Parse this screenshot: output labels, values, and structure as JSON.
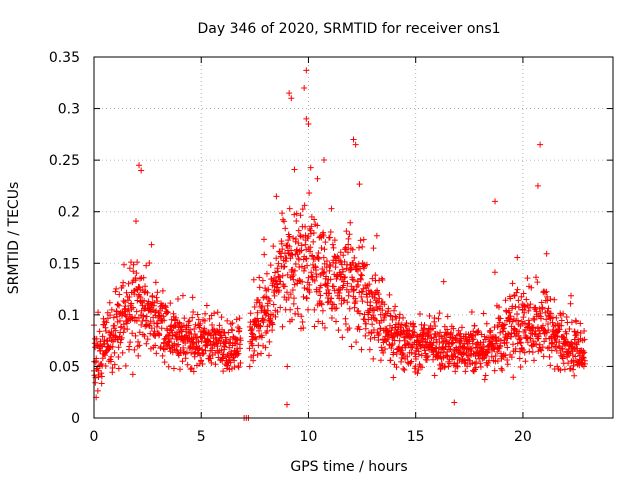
{
  "chart_data": {
    "type": "scatter",
    "title": "Day 346 of 2020, SRMTID for receiver ons1",
    "xlabel": "GPS time / hours",
    "ylabel": "SRMTID / TECUs",
    "xlim": [
      0,
      24.2
    ],
    "ylim": [
      0,
      0.35
    ],
    "xticks": [
      0,
      5,
      10,
      15,
      20
    ],
    "yticks": [
      0,
      0.05,
      0.1,
      0.15,
      0.2,
      0.25,
      0.3,
      0.35
    ],
    "ytick_labels": [
      "0",
      "0.05",
      "0.1",
      "0.15",
      "0.2",
      "0.25",
      "0.3",
      "0.35"
    ],
    "grid": true,
    "marker": "+",
    "color": "#ff0000",
    "series": [
      {
        "name": "ons1",
        "profile": {
          "description": "approximate envelope of the scattered SRMTID points, sampled per hour",
          "hour": [
            0,
            1,
            2,
            3,
            4,
            5,
            6,
            7,
            8,
            9,
            10,
            11,
            12,
            13,
            14,
            15,
            16,
            17,
            18,
            19,
            20,
            21,
            22,
            23
          ],
          "median": [
            0.05,
            0.09,
            0.11,
            0.09,
            0.075,
            0.075,
            0.07,
            0.07,
            0.1,
            0.15,
            0.15,
            0.13,
            0.13,
            0.11,
            0.075,
            0.07,
            0.07,
            0.065,
            0.065,
            0.075,
            0.09,
            0.09,
            0.07,
            0.065
          ],
          "spread": [
            0.02,
            0.03,
            0.035,
            0.025,
            0.02,
            0.02,
            0.02,
            0.02,
            0.03,
            0.05,
            0.05,
            0.04,
            0.04,
            0.035,
            0.02,
            0.02,
            0.02,
            0.02,
            0.02,
            0.025,
            0.03,
            0.035,
            0.02,
            0.02
          ],
          "samples_per_hour": 95
        },
        "gaps_hours": [
          [
            6.85,
            7.25
          ]
        ],
        "notable_points": [
          {
            "x": 7.0,
            "y": 0.0
          },
          {
            "x": 7.1,
            "y": 0.0
          },
          {
            "x": 7.2,
            "y": 0.0
          },
          {
            "x": 9.0,
            "y": 0.013
          },
          {
            "x": 9.2,
            "y": 0.31
          },
          {
            "x": 9.1,
            "y": 0.315
          },
          {
            "x": 9.8,
            "y": 0.32
          },
          {
            "x": 9.9,
            "y": 0.337
          },
          {
            "x": 9.9,
            "y": 0.29
          },
          {
            "x": 10.0,
            "y": 0.285
          },
          {
            "x": 12.1,
            "y": 0.27
          },
          {
            "x": 12.2,
            "y": 0.265
          },
          {
            "x": 2.1,
            "y": 0.245
          },
          {
            "x": 2.2,
            "y": 0.24
          },
          {
            "x": 20.8,
            "y": 0.265
          },
          {
            "x": 20.7,
            "y": 0.225
          },
          {
            "x": 18.7,
            "y": 0.21
          },
          {
            "x": 16.8,
            "y": 0.015
          },
          {
            "x": 0.1,
            "y": 0.02
          },
          {
            "x": 0.0,
            "y": 0.09
          }
        ]
      }
    ]
  }
}
